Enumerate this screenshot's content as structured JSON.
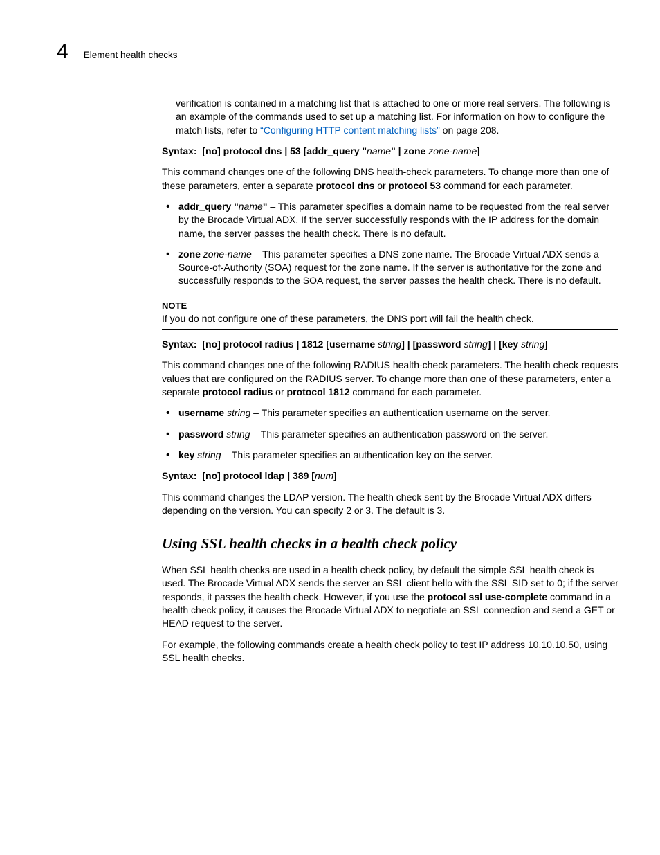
{
  "header": {
    "chapter": "4",
    "running": "Element health checks"
  },
  "intro": {
    "pretext": "verification is contained in a matching list that is attached to one or more real servers. The following is an example of the commands used to set up a matching list. For information on how to configure the match lists, refer to ",
    "link": "“Configuring HTTP content matching lists”",
    "post": " on page 208."
  },
  "syntax1": {
    "label": "Syntax:",
    "a": "[no] protocol dns | 53 [addr_query \"",
    "i1": "name",
    "b": "\" | zone ",
    "i2": "zone-name",
    "c": "]"
  },
  "dns_desc": {
    "p1a": "This command changes one of the following DNS health-check parameters. To change more than one of these parameters, enter a separate ",
    "p1b": "protocol dns",
    "p1c": " or ",
    "p1d": "protocol 53",
    "p1e": " command for each parameter."
  },
  "dns_bullets": {
    "addr": {
      "b": "addr_query \"",
      "i": "name",
      "b2": "\"",
      "rest": " – This parameter specifies a domain name to be requested from the real server by the Brocade Virtual ADX. If the server successfully responds with the IP address for the domain name, the server passes the health check. There is no default."
    },
    "zone": {
      "b": "zone ",
      "i": "zone-name",
      "rest": " – This parameter specifies a DNS zone name. The Brocade Virtual ADX sends a Source-of-Authority (SOA) request for the zone name. If the server is authoritative for the zone and successfully responds to the SOA request, the server passes the health check. There is no default."
    }
  },
  "note": {
    "title": "NOTE",
    "text": "If you do not configure one of these parameters, the DNS port will fail the health check."
  },
  "syntax2": {
    "label": "Syntax:",
    "a": "[no] protocol radius | 1812 [username ",
    "i1": "string",
    "b": "] | [password ",
    "i2": "string",
    "c": "] | [key ",
    "i3": "string",
    "d": "]"
  },
  "radius_desc": {
    "p1a": "This command changes one of the following RADIUS health-check parameters. The health check requests values that are configured on the RADIUS server. To change more than one of these parameters, enter a separate ",
    "p1b": "protocol radius",
    "p1c": " or ",
    "p1d": "protocol 1812",
    "p1e": " command for each parameter."
  },
  "radius_bullets": {
    "u": {
      "b": "username ",
      "i": "string",
      "rest": " – This parameter specifies an authentication username on the server."
    },
    "p": {
      "b": "password ",
      "i": "string",
      "rest": " – This parameter specifies an authentication password on the server."
    },
    "k": {
      "b": "key ",
      "i": "string",
      "rest": " – This parameter specifies an authentication key on the server."
    }
  },
  "syntax3": {
    "label": "Syntax:",
    "a": "[no] protocol ldap | 389 [",
    "i1": "num",
    "b": "]"
  },
  "ldap_desc": "This command changes the LDAP version. The health check sent by the Brocade Virtual ADX differs depending on the version. You can specify 2 or 3. The default is 3.",
  "section_title": "Using SSL health checks in a health check policy",
  "ssl": {
    "p1a": "When SSL health checks are used in a health check policy, by default the simple SSL health check is used. The Brocade Virtual ADX sends the server an SSL client hello with the SSL SID set to 0; if the server responds, it passes the health check. However, if you use the ",
    "p1b": "protocol ssl use-complete",
    "p1c": " command in a health check policy, it causes the Brocade Virtual ADX to negotiate an SSL connection and send a GET or HEAD request to the server.",
    "p2": "For example, the following commands create a health check policy to test IP address 10.10.10.50, using SSL health checks."
  }
}
